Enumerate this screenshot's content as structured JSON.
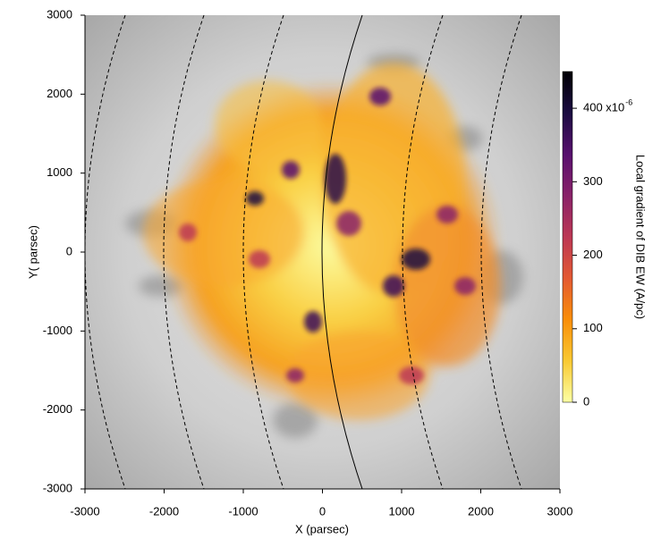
{
  "chart_data": {
    "type": "map",
    "x_label": "X (parsec)",
    "y_label": "Y( parsec)",
    "xlim": [
      -3000,
      3000
    ],
    "ylim": [
      -3000,
      3000
    ],
    "xticks": [
      -3000,
      -2000,
      -1000,
      0,
      1000,
      2000,
      3000
    ],
    "yticks": [
      -3000,
      -2000,
      -1000,
      0,
      1000,
      2000,
      3000
    ],
    "colorbar": {
      "label": "Local gradient of DIB EW (A/pc)",
      "lim": [
        0,
        450
      ],
      "ticks": [
        0,
        100,
        200,
        300,
        {
          "value": 400,
          "label": "400 x10"
        }
      ],
      "exponent": "-6",
      "colors": [
        "#fcffa4",
        "#f9c932",
        "#f98e09",
        "#e35933",
        "#bc3754",
        "#892269",
        "#57106e",
        "#1b0c41",
        "#000004"
      ]
    }
  }
}
